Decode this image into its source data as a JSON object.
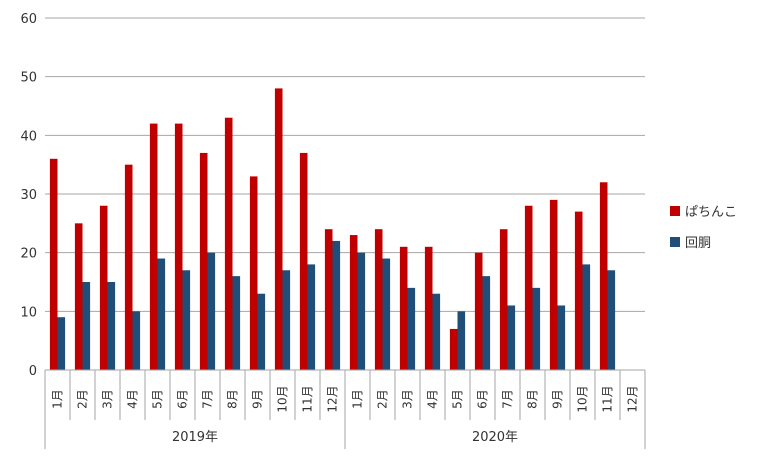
{
  "chart_data": {
    "type": "bar",
    "title": "",
    "xlabel": "",
    "ylabel": "",
    "ylim": [
      0,
      60
    ],
    "yticks": [
      0,
      10,
      20,
      30,
      40,
      50,
      60
    ],
    "grid": true,
    "legend_position": "right",
    "year_groups": [
      {
        "label": "2019年",
        "months": [
          "1月",
          "2月",
          "3月",
          "4月",
          "5月",
          "6月",
          "7月",
          "8月",
          "9月",
          "10月",
          "11月",
          "12月"
        ]
      },
      {
        "label": "2020年",
        "months": [
          "1月",
          "2月",
          "3月",
          "4月",
          "5月",
          "6月",
          "7月",
          "8月",
          "9月",
          "10月",
          "11月",
          "12月"
        ]
      }
    ],
    "series": [
      {
        "name": "ぱちんこ",
        "color": "#C00000",
        "values": [
          36,
          25,
          28,
          35,
          42,
          42,
          37,
          43,
          33,
          48,
          37,
          24,
          23,
          24,
          21,
          21,
          7,
          20,
          24,
          28,
          29,
          27,
          32,
          null
        ]
      },
      {
        "name": "回胴",
        "color": "#1F4E79",
        "values": [
          9,
          15,
          15,
          10,
          19,
          17,
          20,
          16,
          13,
          17,
          18,
          22,
          20,
          19,
          14,
          13,
          10,
          16,
          11,
          14,
          11,
          18,
          17,
          null
        ]
      }
    ]
  }
}
